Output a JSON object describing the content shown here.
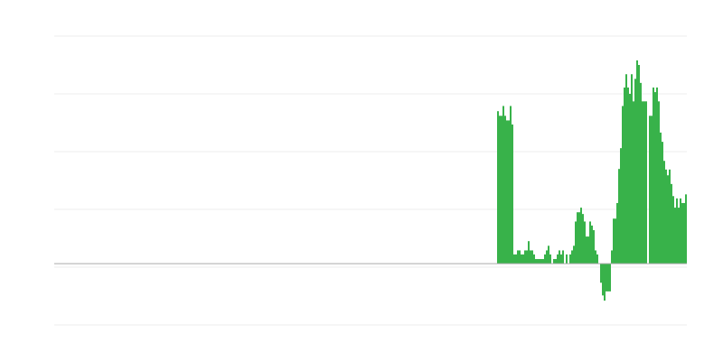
{
  "chart_data": {
    "type": "bar",
    "title": "",
    "xlabel": "",
    "ylabel": "",
    "grid": true,
    "legend": "none",
    "bar_color": "#38b24a",
    "xlim": [
      0,
      350
    ],
    "ylim": [
      -1.06,
      3.94
    ],
    "values": [
      2.64,
      2.56,
      2.56,
      2.73,
      2.56,
      2.48,
      2.48,
      2.73,
      2.41,
      0.16,
      0.16,
      0.23,
      0.23,
      0.16,
      0.16,
      0.23,
      0.23,
      0.39,
      0.23,
      0.23,
      0.16,
      0.08,
      0.08,
      0.08,
      0.08,
      0.08,
      0.16,
      0.23,
      0.31,
      0.16,
      0,
      0.08,
      0.08,
      0.16,
      0.23,
      0.16,
      0.23,
      0,
      0.16,
      0,
      0.16,
      0.23,
      0.31,
      0.73,
      0.89,
      0.89,
      0.97,
      0.86,
      0.73,
      0.47,
      0.47,
      0.73,
      0.66,
      0.58,
      0.23,
      0.16,
      0,
      -0.33,
      -0.55,
      -0.64,
      -0.48,
      -0.48,
      -0.48,
      0.23,
      0.78,
      0.78,
      1.05,
      1.64,
      2.0,
      2.73,
      3.05,
      3.28,
      3.05,
      2.94,
      3.28,
      2.81,
      3.2,
      3.52,
      3.44,
      3.13,
      2.81,
      2.81,
      2.81,
      0,
      2.56,
      2.56,
      3.05,
      2.97,
      3.05,
      2.81,
      2.27,
      2.11,
      1.78,
      1.63,
      1.53,
      1.63,
      1.38,
      1.17,
      0.97,
      1.13,
      0.97,
      1.13,
      1.05,
      1.05,
      1.2
    ]
  }
}
